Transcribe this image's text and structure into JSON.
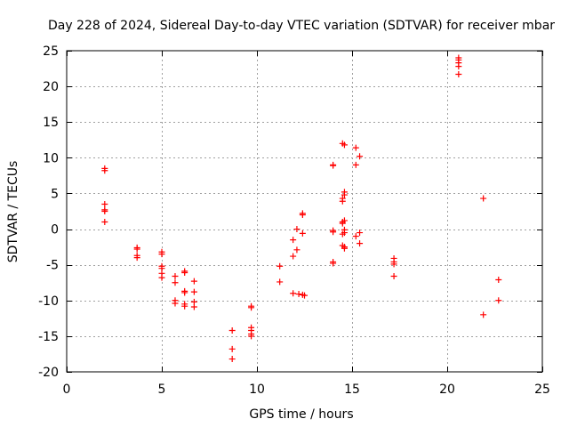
{
  "chart_data": {
    "type": "scatter",
    "title": "Day 228 of 2024, Sidereal Day-to-day VTEC variation (SDTVAR) for receiver mbar",
    "xlabel": "GPS time / hours",
    "ylabel": "SDTVAR / TECUs",
    "xlim": [
      0,
      25
    ],
    "ylim": [
      -20,
      25
    ],
    "xticks": [
      0,
      5,
      10,
      15,
      20,
      25
    ],
    "yticks": [
      -20,
      -15,
      -10,
      -5,
      0,
      5,
      10,
      15,
      20,
      25
    ],
    "xtick_labels": [
      "0",
      "5",
      "10",
      "15",
      "20",
      "25"
    ],
    "ytick_labels": [
      "-20",
      "-15",
      "-10",
      "-5",
      "0",
      "5",
      "10",
      "15",
      "20",
      "25"
    ],
    "grid": true,
    "marker": "+",
    "colors": {
      "points": "#ff0000",
      "grid": "#a0a0a0",
      "axes": "#000000"
    },
    "series": [
      {
        "name": "SDTVAR",
        "points": [
          [
            2.0,
            8.5
          ],
          [
            2.0,
            8.2
          ],
          [
            2.0,
            3.5
          ],
          [
            2.0,
            2.7
          ],
          [
            2.0,
            2.5
          ],
          [
            2.0,
            1.0
          ],
          [
            3.7,
            -2.6
          ],
          [
            3.7,
            -2.8
          ],
          [
            3.7,
            -3.7
          ],
          [
            3.7,
            -4.0
          ],
          [
            5.0,
            -3.2
          ],
          [
            5.0,
            -3.5
          ],
          [
            5.0,
            -5.2
          ],
          [
            5.0,
            -5.5
          ],
          [
            5.0,
            -6.2
          ],
          [
            5.0,
            -6.8
          ],
          [
            5.7,
            -6.6
          ],
          [
            5.7,
            -7.5
          ],
          [
            5.7,
            -10.0
          ],
          [
            5.7,
            -10.4
          ],
          [
            6.2,
            -5.9
          ],
          [
            6.2,
            -6.1
          ],
          [
            6.2,
            -8.7
          ],
          [
            6.2,
            -8.9
          ],
          [
            6.2,
            -10.5
          ],
          [
            6.2,
            -10.8
          ],
          [
            6.7,
            -7.3
          ],
          [
            6.7,
            -8.8
          ],
          [
            6.7,
            -10.2
          ],
          [
            6.7,
            -10.9
          ],
          [
            8.7,
            -14.2
          ],
          [
            8.7,
            -16.8
          ],
          [
            8.7,
            -18.2
          ],
          [
            9.7,
            -10.8
          ],
          [
            9.7,
            -11.0
          ],
          [
            9.7,
            -13.8
          ],
          [
            9.7,
            -14.2
          ],
          [
            9.7,
            -14.7
          ],
          [
            9.7,
            -15.0
          ],
          [
            11.2,
            -5.2
          ],
          [
            11.2,
            -7.4
          ],
          [
            11.9,
            -1.5
          ],
          [
            11.9,
            -3.8
          ],
          [
            11.9,
            -9.0
          ],
          [
            12.1,
            0.0
          ],
          [
            12.1,
            -2.9
          ],
          [
            12.2,
            -9.1
          ],
          [
            12.4,
            2.0
          ],
          [
            12.4,
            2.2
          ],
          [
            12.4,
            -0.6
          ],
          [
            12.4,
            -9.2
          ],
          [
            12.5,
            -9.3
          ],
          [
            14.0,
            9.0
          ],
          [
            14.0,
            8.9
          ],
          [
            14.0,
            -0.2
          ],
          [
            14.0,
            -0.4
          ],
          [
            14.0,
            -4.6
          ],
          [
            14.0,
            -4.8
          ],
          [
            14.5,
            12.0
          ],
          [
            14.6,
            11.8
          ],
          [
            14.6,
            5.2
          ],
          [
            14.6,
            4.8
          ],
          [
            14.5,
            4.3
          ],
          [
            14.5,
            3.9
          ],
          [
            14.6,
            1.2
          ],
          [
            14.5,
            1.0
          ],
          [
            14.5,
            0.8
          ],
          [
            14.6,
            -0.1
          ],
          [
            14.6,
            -0.5
          ],
          [
            14.5,
            -0.7
          ],
          [
            14.5,
            -2.3
          ],
          [
            14.6,
            -2.5
          ],
          [
            14.6,
            -2.7
          ],
          [
            15.2,
            11.4
          ],
          [
            15.2,
            9.0
          ],
          [
            15.2,
            -1.0
          ],
          [
            15.4,
            10.2
          ],
          [
            15.4,
            -0.5
          ],
          [
            15.4,
            -2.0
          ],
          [
            17.2,
            -4.1
          ],
          [
            17.2,
            -4.6
          ],
          [
            17.2,
            -4.9
          ],
          [
            17.2,
            -6.6
          ],
          [
            20.6,
            24.0
          ],
          [
            20.6,
            23.7
          ],
          [
            20.6,
            23.3
          ],
          [
            20.6,
            22.8
          ],
          [
            20.6,
            21.7
          ],
          [
            21.9,
            4.3
          ],
          [
            21.9,
            -12.0
          ],
          [
            22.7,
            -7.1
          ],
          [
            22.7,
            -10.0
          ]
        ]
      }
    ]
  }
}
